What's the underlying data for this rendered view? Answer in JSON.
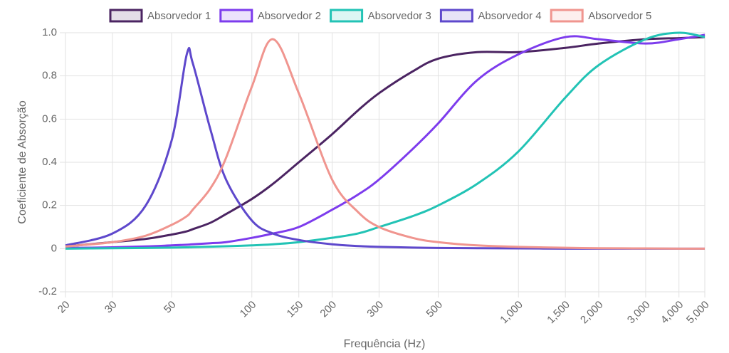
{
  "chart_data": {
    "type": "line",
    "x_label": "Frequência (Hz)",
    "y_label": "Coeficiente de Absorção",
    "x": [
      20,
      30,
      40,
      50,
      57,
      60,
      70,
      80,
      100,
      120,
      150,
      200,
      250,
      300,
      400,
      500,
      700,
      1000,
      1500,
      2000,
      3000,
      4000,
      5000
    ],
    "series": [
      {
        "name": "Absorvedor 1",
        "color": "#4b2462",
        "values": [
          0.01,
          0.03,
          0.045,
          0.065,
          0.08,
          0.09,
          0.12,
          0.16,
          0.23,
          0.3,
          0.4,
          0.53,
          0.64,
          0.72,
          0.82,
          0.88,
          0.91,
          0.91,
          0.93,
          0.95,
          0.97,
          0.975,
          0.98
        ]
      },
      {
        "name": "Absorvedor 2",
        "color": "#7d3ced",
        "values": [
          0.003,
          0.006,
          0.01,
          0.015,
          0.018,
          0.02,
          0.025,
          0.03,
          0.05,
          0.07,
          0.1,
          0.18,
          0.25,
          0.32,
          0.46,
          0.58,
          0.78,
          0.9,
          0.98,
          0.97,
          0.95,
          0.97,
          0.99
        ]
      },
      {
        "name": "Absorvedor 3",
        "color": "#22c3b5",
        "values": [
          0,
          0.002,
          0.003,
          0.005,
          0.006,
          0.007,
          0.009,
          0.011,
          0.015,
          0.02,
          0.03,
          0.05,
          0.07,
          0.1,
          0.15,
          0.2,
          0.3,
          0.45,
          0.7,
          0.85,
          0.97,
          1.0,
          0.98
        ]
      },
      {
        "name": "Absorvedor 4",
        "color": "#5e48cc",
        "values": [
          0.015,
          0.07,
          0.2,
          0.5,
          0.9,
          0.86,
          0.55,
          0.32,
          0.13,
          0.07,
          0.04,
          0.02,
          0.012,
          0.008,
          0.005,
          0.003,
          0.002,
          0.001,
          0,
          0,
          0,
          0,
          0
        ]
      },
      {
        "name": "Absorvedor 5",
        "color": "#f0958f",
        "values": [
          0.01,
          0.03,
          0.06,
          0.11,
          0.15,
          0.18,
          0.28,
          0.42,
          0.75,
          0.97,
          0.72,
          0.32,
          0.17,
          0.1,
          0.05,
          0.03,
          0.015,
          0.008,
          0.004,
          0.002,
          0.001,
          0,
          0
        ]
      }
    ],
    "log_x": true,
    "grid": true,
    "legend": "top",
    "xlim": [
      20,
      5000
    ],
    "xticks": [
      20,
      30,
      50,
      100,
      150,
      200,
      300,
      500,
      {
        "value": 1000,
        "label": "1,000"
      },
      {
        "value": 1500,
        "label": "1,500"
      },
      {
        "value": 2000,
        "label": "2,000"
      },
      {
        "value": 3000,
        "label": "3,000"
      },
      {
        "value": 4000,
        "label": "4,000"
      },
      {
        "value": 5000,
        "label": "5,000"
      }
    ],
    "ylim": [
      -0.2,
      1.0
    ],
    "yticks": [
      -0.2,
      0,
      0.2,
      0.4,
      0.6,
      0.8,
      {
        "value": 1,
        "label": "1.0"
      }
    ]
  }
}
